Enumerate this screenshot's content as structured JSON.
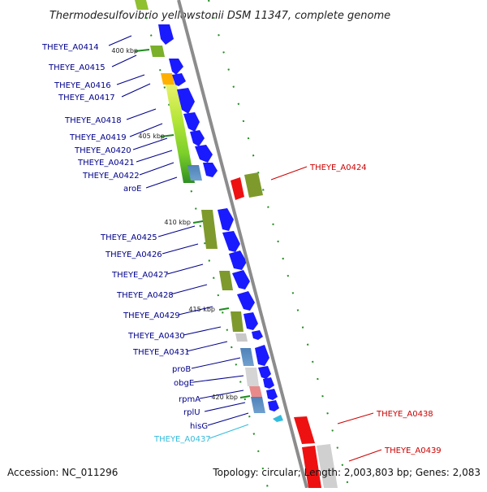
{
  "title": "Thermodesulfovibrio yellowstonii DSM 11347, complete genome",
  "accession_label": "Accession: NC_011296",
  "topology_label": "Topology: circular; Length: 2,003,803 bp; Genes: 2,083",
  "colors": {
    "forward_gene": "#1a1aff",
    "reverse_gene": "#ee1111",
    "backbone": "#8c8c8c",
    "tick": "#1f8a1f",
    "label_forward": "#00008b",
    "label_reverse": "#cc0000",
    "label_highlight": "#33bbdd"
  },
  "ticks": [
    {
      "label": "400 kbp"
    },
    {
      "label": "405 kbp"
    },
    {
      "label": "410 kbp"
    },
    {
      "label": "415 kbp"
    },
    {
      "label": "420 kbp"
    }
  ],
  "left_labels": [
    {
      "text": "THEYE_A0414",
      "color": "#00008b"
    },
    {
      "text": "THEYE_A0415",
      "color": "#00008b"
    },
    {
      "text": "THEYE_A0416",
      "color": "#00008b"
    },
    {
      "text": "THEYE_A0417",
      "color": "#00008b"
    },
    {
      "text": "THEYE_A0418",
      "color": "#00008b"
    },
    {
      "text": "THEYE_A0419",
      "color": "#00008b"
    },
    {
      "text": "THEYE_A0420",
      "color": "#00008b"
    },
    {
      "text": "THEYE_A0421",
      "color": "#00008b"
    },
    {
      "text": "THEYE_A0422",
      "color": "#00008b"
    },
    {
      "text": "aroE",
      "color": "#00008b"
    },
    {
      "text": "THEYE_A0425",
      "color": "#00008b"
    },
    {
      "text": "THEYE_A0426",
      "color": "#00008b"
    },
    {
      "text": "THEYE_A0427",
      "color": "#00008b"
    },
    {
      "text": "THEYE_A0428",
      "color": "#00008b"
    },
    {
      "text": "THEYE_A0429",
      "color": "#00008b"
    },
    {
      "text": "THEYE_A0430",
      "color": "#00008b"
    },
    {
      "text": "THEYE_A0431",
      "color": "#00008b"
    },
    {
      "text": "proB",
      "color": "#00008b"
    },
    {
      "text": "obgE",
      "color": "#00008b"
    },
    {
      "text": "rpmA",
      "color": "#00008b"
    },
    {
      "text": "rplU",
      "color": "#00008b"
    },
    {
      "text": "hisG",
      "color": "#00008b"
    },
    {
      "text": "THEYE_A0437",
      "color": "#33bbdd"
    }
  ],
  "right_labels": [
    {
      "text": "THEYE_A0424",
      "color": "#cc0000"
    },
    {
      "text": "THEYE_A0438",
      "color": "#cc0000"
    },
    {
      "text": "THEYE_A0439",
      "color": "#cc0000"
    }
  ]
}
